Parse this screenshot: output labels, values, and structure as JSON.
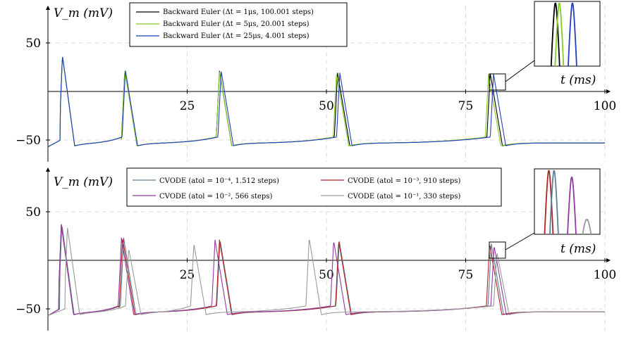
{
  "chart_data": [
    {
      "type": "line",
      "xlabel": "t (ms)",
      "ylabel": "V_m (mV)",
      "xlim": [
        0,
        100
      ],
      "ylim": [
        -55,
        80
      ],
      "x_ticks": [
        {
          "value": 25,
          "label": "25"
        },
        {
          "value": 50,
          "label": "50"
        },
        {
          "value": 75,
          "label": "75"
        },
        {
          "value": 100,
          "label": "100"
        }
      ],
      "y_ticks": [
        {
          "value": 50,
          "label": "50"
        },
        {
          "value": -50,
          "label": "−50"
        }
      ],
      "grid": true,
      "legend_position": "top-center",
      "legend_columns": 1,
      "series": [
        {
          "name": "Backward Euler (Δt = 1μs, 100.001 steps)",
          "color": "#000000",
          "spikes": [
            2.6,
            13.8,
            30.8,
            52.0,
            79.4
          ],
          "spike_peak": [
            37,
            22,
            21,
            19,
            19
          ]
        },
        {
          "name": "Backward Euler (Δt = 5μs, 20.001 steps)",
          "color": "#88cc22",
          "spikes": [
            2.6,
            13.8,
            30.8,
            51.8,
            79.1
          ],
          "spike_peak": [
            37,
            22,
            20,
            19,
            18
          ]
        },
        {
          "name": "Backward Euler (Δt = 25μs, 4.001 steps)",
          "color": "#1f3fbf",
          "spikes": [
            2.6,
            13.9,
            31.1,
            52.4,
            80.0
          ],
          "spike_peak": [
            37,
            22,
            21,
            19,
            18
          ]
        }
      ],
      "inset_peaks": [
        {
          "color": "#000000",
          "x": 0.32
        },
        {
          "color": "#88cc22",
          "x": 0.38
        },
        {
          "color": "#1f3fbf",
          "x": 0.58
        }
      ]
    },
    {
      "type": "line",
      "xlabel": "t (ms)",
      "ylabel": "V_m (mV)",
      "xlim": [
        0,
        100
      ],
      "ylim": [
        -55,
        80
      ],
      "x_ticks": [
        {
          "value": 25,
          "label": "25"
        },
        {
          "value": 50,
          "label": "50"
        },
        {
          "value": 75,
          "label": "75"
        },
        {
          "value": 100,
          "label": "100"
        }
      ],
      "y_ticks": [
        {
          "value": 50,
          "label": "50"
        },
        {
          "value": -50,
          "label": "−50"
        }
      ],
      "grid": true,
      "legend_position": "top-center",
      "legend_columns": 2,
      "series": [
        {
          "name": "CVODE (atol = 10⁻⁴, 1.512 steps)",
          "color": "#5f7f95",
          "spikes": [
            2.5,
            13.6,
            30.9,
            52.3,
            79.6
          ],
          "spike_peak": [
            37,
            23,
            21,
            20,
            17
          ]
        },
        {
          "name": "CVODE (atol = 10⁻³, 910 steps)",
          "color": "#b22222",
          "spikes": [
            2.4,
            13.4,
            30.8,
            52.2,
            79.3
          ],
          "spike_peak": [
            37,
            23,
            21,
            20,
            17
          ]
        },
        {
          "name": "CVODE (atol = 10⁻², 566 steps)",
          "color": "#8e3a9e",
          "spikes": [
            2.4,
            13.2,
            30.0,
            51.3,
            80.1
          ],
          "spike_peak": [
            37,
            23,
            21,
            20,
            15
          ]
        },
        {
          "name": "CVODE (atol = 10⁻¹, 330 steps)",
          "color": "#9a9a9a",
          "spikes": [
            3.5,
            14.5,
            26.2,
            46.9,
            80.6
          ],
          "spike_peak": [
            34,
            12,
            17,
            23,
            8
          ]
        }
      ],
      "inset_peaks": [
        {
          "color": "#b22222",
          "x": 0.22
        },
        {
          "color": "#5f7f95",
          "x": 0.3
        },
        {
          "color": "#8e3a9e",
          "x": 0.57
        },
        {
          "color": "#9a9a9a",
          "x": 0.8
        }
      ]
    }
  ]
}
